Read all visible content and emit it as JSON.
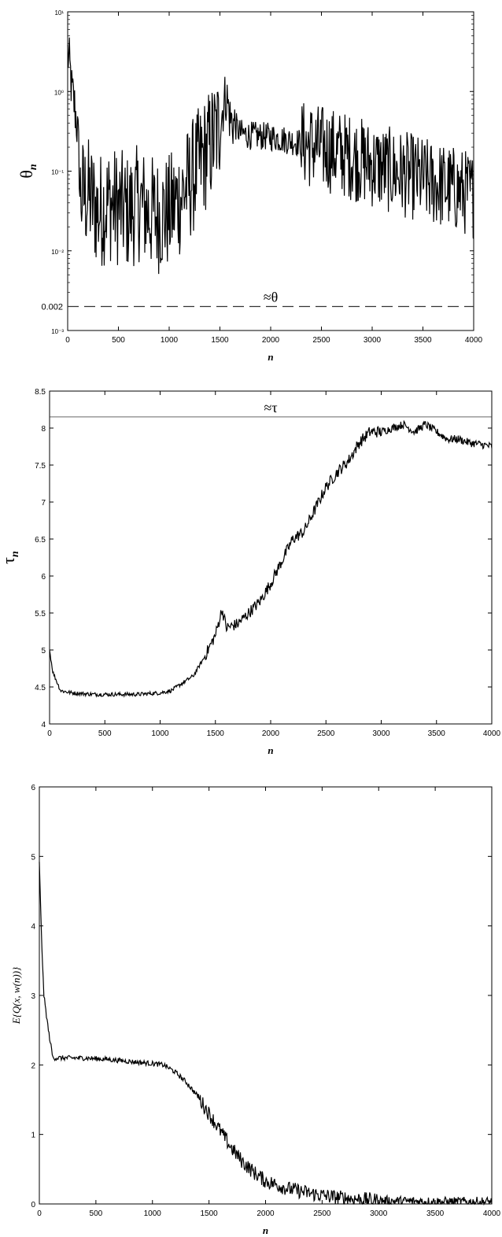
{
  "chart_data": [
    {
      "type": "line",
      "ylabel": "θ",
      "ylabel_sub": "n",
      "xlabel": "n",
      "xlim": [
        0,
        4000
      ],
      "ylim": [
        0.001,
        10
      ],
      "yscale": "log",
      "grid": false,
      "x_ticks": [
        "0",
        "500",
        "1000",
        "1500",
        "2000",
        "2500",
        "3000",
        "3500",
        "4000"
      ],
      "y_ticks": [
        {
          "value": 10,
          "label": "10¹"
        },
        {
          "value": 1,
          "label": "10⁰"
        },
        {
          "value": 0.1,
          "label": "10⁻¹"
        },
        {
          "value": 0.01,
          "label": "10⁻²"
        },
        {
          "value": 0.001,
          "label": "10⁻³"
        }
      ],
      "reference": {
        "value": 0.002,
        "label": "≈θ",
        "value_label": "0.002",
        "style": "dashed"
      },
      "series": [
        {
          "color": "#000000",
          "noisy": true,
          "points": [
            [
              0,
              3.0
            ],
            [
              40,
              1.0
            ],
            [
              80,
              0.5
            ],
            [
              120,
              0.05
            ],
            [
              200,
              0.05
            ],
            [
              300,
              0.03
            ],
            [
              400,
              0.04
            ],
            [
              500,
              0.035
            ],
            [
              600,
              0.03
            ],
            [
              700,
              0.04
            ],
            [
              800,
              0.03
            ],
            [
              900,
              0.028
            ],
            [
              1000,
              0.03
            ],
            [
              1100,
              0.045
            ],
            [
              1200,
              0.07
            ],
            [
              1300,
              0.12
            ],
            [
              1400,
              0.2
            ],
            [
              1500,
              0.35
            ],
            [
              1560,
              0.9
            ],
            [
              1600,
              0.45
            ],
            [
              1700,
              0.3
            ],
            [
              1800,
              0.28
            ],
            [
              2000,
              0.27
            ],
            [
              2200,
              0.24
            ],
            [
              2400,
              0.21
            ],
            [
              2600,
              0.18
            ],
            [
              2800,
              0.15
            ],
            [
              3000,
              0.12
            ],
            [
              3200,
              0.1
            ],
            [
              3400,
              0.085
            ],
            [
              3600,
              0.07
            ],
            [
              3800,
              0.06
            ],
            [
              4000,
              0.05
            ]
          ]
        }
      ]
    },
    {
      "type": "line",
      "ylabel": "τ",
      "ylabel_sub": "n",
      "xlabel": "n",
      "xlim": [
        0,
        4000
      ],
      "ylim": [
        4,
        8.5
      ],
      "grid": false,
      "x_ticks": [
        "0",
        "500",
        "1000",
        "1500",
        "2000",
        "2500",
        "3000",
        "3500",
        "4000"
      ],
      "y_ticks": [
        "4",
        "4.5",
        "5",
        "5.5",
        "6",
        "6.5",
        "7",
        "7.5",
        "8",
        "8.5"
      ],
      "reference": {
        "value": 8.15,
        "label": "≈τ",
        "style": "solid"
      },
      "series": [
        {
          "color": "#000000",
          "noisy": true,
          "points": [
            [
              0,
              5.0
            ],
            [
              30,
              4.7
            ],
            [
              100,
              4.45
            ],
            [
              200,
              4.42
            ],
            [
              400,
              4.4
            ],
            [
              600,
              4.4
            ],
            [
              800,
              4.4
            ],
            [
              1000,
              4.42
            ],
            [
              1100,
              4.45
            ],
            [
              1200,
              4.55
            ],
            [
              1300,
              4.65
            ],
            [
              1400,
              4.9
            ],
            [
              1500,
              5.2
            ],
            [
              1560,
              5.55
            ],
            [
              1600,
              5.3
            ],
            [
              1700,
              5.35
            ],
            [
              1800,
              5.5
            ],
            [
              1900,
              5.65
            ],
            [
              2000,
              5.9
            ],
            [
              2100,
              6.2
            ],
            [
              2200,
              6.5
            ],
            [
              2300,
              6.6
            ],
            [
              2400,
              6.9
            ],
            [
              2500,
              7.2
            ],
            [
              2600,
              7.4
            ],
            [
              2700,
              7.55
            ],
            [
              2800,
              7.8
            ],
            [
              2900,
              7.95
            ],
            [
              3000,
              7.95
            ],
            [
              3100,
              8.0
            ],
            [
              3200,
              8.05
            ],
            [
              3300,
              7.95
            ],
            [
              3400,
              8.05
            ],
            [
              3500,
              7.95
            ],
            [
              3600,
              7.85
            ],
            [
              3700,
              7.85
            ],
            [
              3800,
              7.8
            ],
            [
              3900,
              7.78
            ],
            [
              4000,
              7.75
            ]
          ]
        }
      ]
    },
    {
      "type": "line",
      "ylabel": "E{Q(x, w(n))}",
      "xlabel": "n",
      "xlim": [
        0,
        4000
      ],
      "ylim": [
        0,
        6
      ],
      "grid": false,
      "x_ticks": [
        "0",
        "500",
        "1000",
        "1500",
        "2000",
        "2500",
        "3000",
        "3500",
        "4000"
      ],
      "y_ticks": [
        "0",
        "1",
        "2",
        "3",
        "4",
        "5",
        "6"
      ],
      "series": [
        {
          "color": "#000000",
          "noisy": true,
          "points": [
            [
              0,
              4.9
            ],
            [
              20,
              3.8
            ],
            [
              40,
              3.0
            ],
            [
              80,
              2.5
            ],
            [
              120,
              2.1
            ],
            [
              200,
              2.1
            ],
            [
              400,
              2.1
            ],
            [
              600,
              2.08
            ],
            [
              800,
              2.05
            ],
            [
              1000,
              2.02
            ],
            [
              1100,
              2.0
            ],
            [
              1200,
              1.9
            ],
            [
              1300,
              1.75
            ],
            [
              1400,
              1.55
            ],
            [
              1500,
              1.3
            ],
            [
              1600,
              1.05
            ],
            [
              1700,
              0.8
            ],
            [
              1800,
              0.6
            ],
            [
              1900,
              0.45
            ],
            [
              2000,
              0.33
            ],
            [
              2200,
              0.22
            ],
            [
              2400,
              0.15
            ],
            [
              2600,
              0.1
            ],
            [
              2800,
              0.07
            ],
            [
              3000,
              0.05
            ],
            [
              3200,
              0.04
            ],
            [
              3400,
              0.035
            ],
            [
              3600,
              0.03
            ],
            [
              3800,
              0.03
            ],
            [
              4000,
              0.03
            ]
          ]
        }
      ]
    }
  ]
}
